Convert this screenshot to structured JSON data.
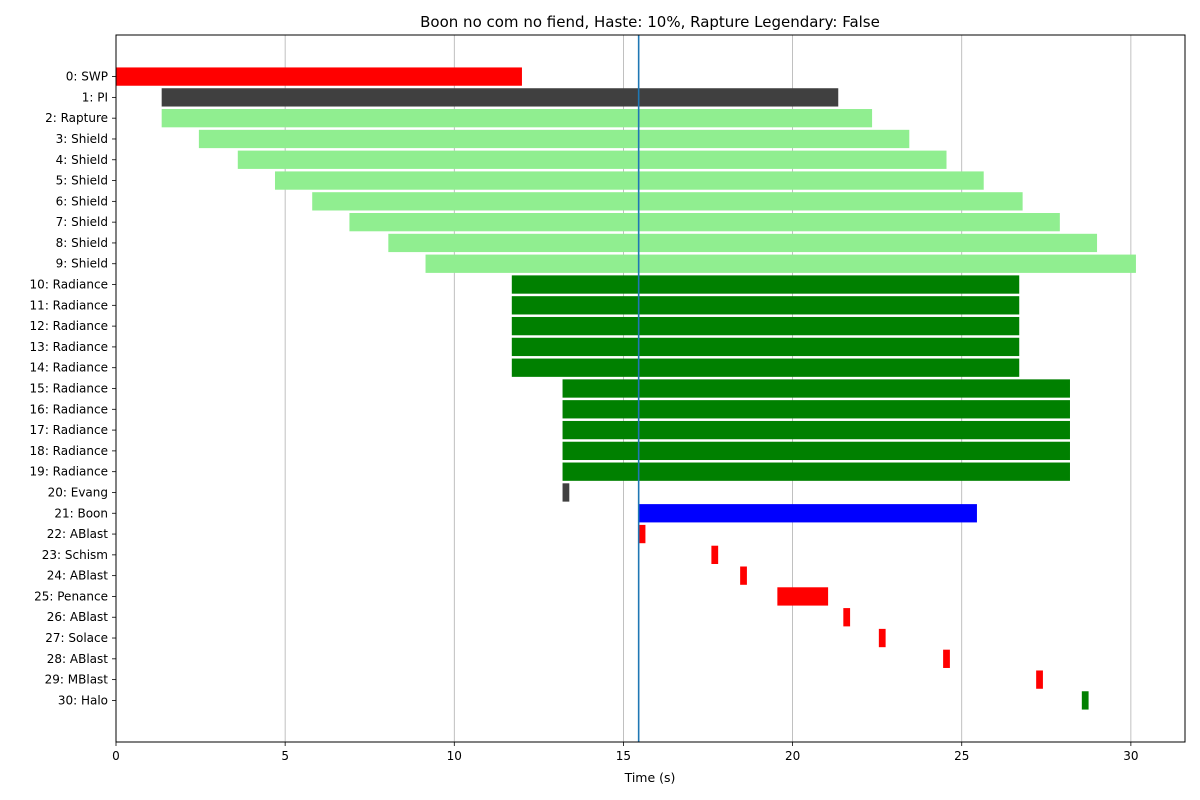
{
  "chart_data": {
    "type": "bar",
    "orientation": "horizontal",
    "title": "Boon no com no fiend, Haste: 10%, Rapture Legendary: False",
    "xlabel": "Time (s)",
    "ylabel": "",
    "xlim": [
      0,
      31.6
    ],
    "xticks": [
      0,
      5,
      10,
      15,
      20,
      25,
      30
    ],
    "grid": "vertical",
    "marker_line": {
      "x": 15.45,
      "color": "#1f77b4"
    },
    "bars": [
      {
        "label": "0: SWP",
        "start": 0,
        "end": 12.0,
        "color": "#ff0000"
      },
      {
        "label": "1: PI",
        "start": 1.35,
        "end": 21.35,
        "color": "#404040"
      },
      {
        "label": "2: Rapture",
        "start": 1.35,
        "end": 22.35,
        "color": "#90ee90"
      },
      {
        "label": "3: Shield",
        "start": 2.45,
        "end": 23.45,
        "color": "#90ee90"
      },
      {
        "label": "4: Shield",
        "start": 3.6,
        "end": 24.55,
        "color": "#90ee90"
      },
      {
        "label": "5: Shield",
        "start": 4.7,
        "end": 25.65,
        "color": "#90ee90"
      },
      {
        "label": "6: Shield",
        "start": 5.8,
        "end": 26.8,
        "color": "#90ee90"
      },
      {
        "label": "7: Shield",
        "start": 6.9,
        "end": 27.9,
        "color": "#90ee90"
      },
      {
        "label": "8: Shield",
        "start": 8.05,
        "end": 29.0,
        "color": "#90ee90"
      },
      {
        "label": "9: Shield",
        "start": 9.15,
        "end": 30.15,
        "color": "#90ee90"
      },
      {
        "label": "10: Radiance",
        "start": 11.7,
        "end": 26.7,
        "color": "#008000"
      },
      {
        "label": "11: Radiance",
        "start": 11.7,
        "end": 26.7,
        "color": "#008000"
      },
      {
        "label": "12: Radiance",
        "start": 11.7,
        "end": 26.7,
        "color": "#008000"
      },
      {
        "label": "13: Radiance",
        "start": 11.7,
        "end": 26.7,
        "color": "#008000"
      },
      {
        "label": "14: Radiance",
        "start": 11.7,
        "end": 26.7,
        "color": "#008000"
      },
      {
        "label": "15: Radiance",
        "start": 13.2,
        "end": 28.2,
        "color": "#008000"
      },
      {
        "label": "16: Radiance",
        "start": 13.2,
        "end": 28.2,
        "color": "#008000"
      },
      {
        "label": "17: Radiance",
        "start": 13.2,
        "end": 28.2,
        "color": "#008000"
      },
      {
        "label": "18: Radiance",
        "start": 13.2,
        "end": 28.2,
        "color": "#008000"
      },
      {
        "label": "19: Radiance",
        "start": 13.2,
        "end": 28.2,
        "color": "#008000"
      },
      {
        "label": "20: Evang",
        "start": 13.2,
        "end": 13.4,
        "color": "#404040"
      },
      {
        "label": "21: Boon",
        "start": 15.45,
        "end": 25.45,
        "color": "#0000ff"
      },
      {
        "label": "22: ABlast",
        "start": 15.45,
        "end": 15.65,
        "color": "#ff0000"
      },
      {
        "label": "23: Schism",
        "start": 17.6,
        "end": 17.8,
        "color": "#ff0000"
      },
      {
        "label": "24: ABlast",
        "start": 18.45,
        "end": 18.65,
        "color": "#ff0000"
      },
      {
        "label": "25: Penance",
        "start": 19.55,
        "end": 21.05,
        "color": "#ff0000"
      },
      {
        "label": "26: ABlast",
        "start": 21.5,
        "end": 21.7,
        "color": "#ff0000"
      },
      {
        "label": "27: Solace",
        "start": 22.55,
        "end": 22.75,
        "color": "#ff0000"
      },
      {
        "label": "28: ABlast",
        "start": 24.45,
        "end": 24.65,
        "color": "#ff0000"
      },
      {
        "label": "29: MBlast",
        "start": 27.2,
        "end": 27.4,
        "color": "#ff0000"
      },
      {
        "label": "30: Halo",
        "start": 28.55,
        "end": 28.75,
        "color": "#008000"
      }
    ]
  }
}
